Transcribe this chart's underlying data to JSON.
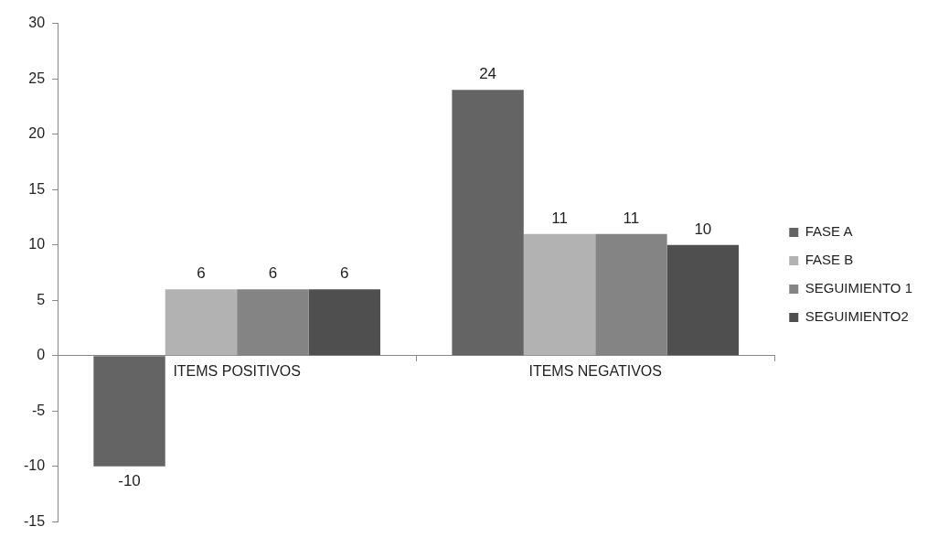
{
  "chart_data": {
    "type": "bar",
    "categories": [
      "ITEMS POSITIVOS",
      "ITEMS NEGATIVOS"
    ],
    "series": [
      {
        "name": "FASE A",
        "color": "#646464",
        "values": [
          -10,
          24
        ]
      },
      {
        "name": "FASE B",
        "color": "#b2b2b2",
        "values": [
          6,
          11
        ]
      },
      {
        "name": "SEGUIMIENTO 1",
        "color": "#848484",
        "values": [
          6,
          11
        ]
      },
      {
        "name": "SEGUIMIENTO2",
        "color": "#4f4f4f",
        "values": [
          6,
          10
        ]
      }
    ],
    "ylim": [
      -15,
      30
    ],
    "yticks": [
      -15,
      -10,
      -5,
      0,
      5,
      10,
      15,
      20,
      25,
      30
    ],
    "grid": false,
    "legend": "right",
    "data_labels": true
  }
}
